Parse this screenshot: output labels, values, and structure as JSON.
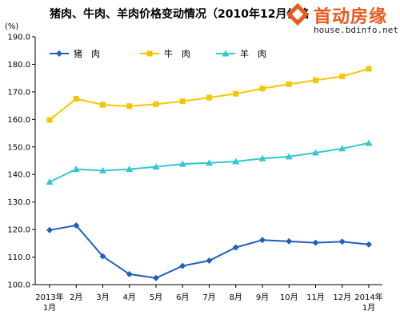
{
  "unit": "(%)",
  "watermark": {
    "brand": "首动房缘",
    "url": "house.bdinfo.net"
  },
  "chart_data": {
    "type": "line",
    "title": "猪肉、牛肉、羊肉价格变动情况（2010年12月价格=100）",
    "title_visible": "猪肉、牛肉、羊肉价格变动情况（2010年12月价格",
    "ylim": [
      100,
      190
    ],
    "yticks": [
      "100.0",
      "110.0",
      "120.0",
      "130.0",
      "140.0",
      "150.0",
      "160.0",
      "170.0",
      "180.0",
      "190.0"
    ],
    "categories": [
      [
        "2013年",
        "1月"
      ],
      [
        "2月"
      ],
      [
        "3月"
      ],
      [
        "4月"
      ],
      [
        "5月"
      ],
      [
        "6月"
      ],
      [
        "7月"
      ],
      [
        "8月"
      ],
      [
        "9月"
      ],
      [
        "10月"
      ],
      [
        "11月"
      ],
      [
        "12月"
      ],
      [
        "2014年",
        "1月"
      ]
    ],
    "grid": false,
    "legend_position": "top-left",
    "series": [
      {
        "name": "猪　肉",
        "color": "#1f5fc0",
        "marker": "diamond",
        "values": [
          119.8,
          121.5,
          110.3,
          103.8,
          102.4,
          106.8,
          108.7,
          113.5,
          116.2,
          115.7,
          115.2,
          115.6,
          114.6
        ]
      },
      {
        "name": "牛　肉",
        "color": "#f5c600",
        "marker": "square",
        "values": [
          159.8,
          167.5,
          165.3,
          164.8,
          165.5,
          166.6,
          167.9,
          169.3,
          171.2,
          172.8,
          174.2,
          175.6,
          178.4
        ]
      },
      {
        "name": "羊　肉",
        "color": "#35c7d0",
        "marker": "triangle",
        "values": [
          137.3,
          141.9,
          141.4,
          141.9,
          142.8,
          143.8,
          144.2,
          144.7,
          145.8,
          146.5,
          147.9,
          149.4,
          151.4
        ]
      }
    ]
  }
}
